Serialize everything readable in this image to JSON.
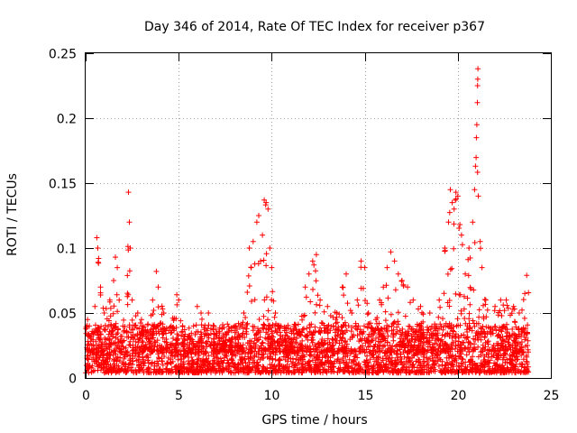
{
  "colors": {
    "marker": "#ff0000",
    "axis": "#000000",
    "grid": "#a0a0a0",
    "background": "#ffffff"
  },
  "chart_data": {
    "type": "scatter",
    "title": "Day 346 of 2014, Rate Of TEC Index for receiver p367",
    "xlabel": "GPS time / hours",
    "ylabel": "ROTI / TECUs",
    "xlim": [
      0,
      25
    ],
    "ylim": [
      0,
      0.25
    ],
    "x_ticks": [
      0,
      5,
      10,
      15,
      20,
      25
    ],
    "x_tick_labels": [
      "0",
      "5",
      "10",
      "15",
      "20",
      "25"
    ],
    "y_ticks": [
      0,
      0.05,
      0.1,
      0.15,
      0.2,
      0.25
    ],
    "y_tick_labels": [
      "0",
      "0.05",
      "0.1",
      "0.15",
      "0.2",
      "0.25"
    ],
    "grid": true,
    "marker": "+",
    "data_extent_hours": [
      0,
      23.8
    ],
    "series": [
      {
        "name": "ROTI",
        "description_points": "representative samples read from the figure",
        "points": [
          [
            0.1,
            0.045
          ],
          [
            0.2,
            0.04
          ],
          [
            0.3,
            0.03
          ],
          [
            0.5,
            0.055
          ],
          [
            0.6,
            0.108
          ],
          [
            0.65,
            0.1
          ],
          [
            0.7,
            0.092
          ],
          [
            0.8,
            0.07
          ],
          [
            1.0,
            0.05
          ],
          [
            1.3,
            0.06
          ],
          [
            1.5,
            0.075
          ],
          [
            1.6,
            0.093
          ],
          [
            1.7,
            0.085
          ],
          [
            1.8,
            0.06
          ],
          [
            2.0,
            0.04
          ],
          [
            2.3,
            0.143
          ],
          [
            2.35,
            0.12
          ],
          [
            2.4,
            0.1
          ],
          [
            2.5,
            0.06
          ],
          [
            2.8,
            0.05
          ],
          [
            3.0,
            0.045
          ],
          [
            3.3,
            0.035
          ],
          [
            3.6,
            0.06
          ],
          [
            3.8,
            0.082
          ],
          [
            3.9,
            0.07
          ],
          [
            4.2,
            0.05
          ],
          [
            4.6,
            0.04
          ],
          [
            4.9,
            0.064
          ],
          [
            5.0,
            0.06
          ],
          [
            5.3,
            0.03
          ],
          [
            5.8,
            0.04
          ],
          [
            6.0,
            0.055
          ],
          [
            6.2,
            0.05
          ],
          [
            6.6,
            0.05
          ],
          [
            6.9,
            0.04
          ],
          [
            7.2,
            0.03
          ],
          [
            7.6,
            0.035
          ],
          [
            8.0,
            0.04
          ],
          [
            8.5,
            0.05
          ],
          [
            8.8,
            0.1
          ],
          [
            8.9,
            0.085
          ],
          [
            9.0,
            0.105
          ],
          [
            9.2,
            0.12
          ],
          [
            9.3,
            0.125
          ],
          [
            9.4,
            0.09
          ],
          [
            9.5,
            0.11
          ],
          [
            9.6,
            0.137
          ],
          [
            9.7,
            0.135
          ],
          [
            9.8,
            0.13
          ],
          [
            9.9,
            0.1
          ],
          [
            10.0,
            0.085
          ],
          [
            10.2,
            0.05
          ],
          [
            10.5,
            0.04
          ],
          [
            10.8,
            0.035
          ],
          [
            11.0,
            0.03
          ],
          [
            11.5,
            0.035
          ],
          [
            11.8,
            0.07
          ],
          [
            12.0,
            0.08
          ],
          [
            12.2,
            0.09
          ],
          [
            12.4,
            0.095
          ],
          [
            12.6,
            0.06
          ],
          [
            13.0,
            0.055
          ],
          [
            13.5,
            0.05
          ],
          [
            13.8,
            0.07
          ],
          [
            14.0,
            0.08
          ],
          [
            14.3,
            0.05
          ],
          [
            14.6,
            0.06
          ],
          [
            14.8,
            0.09
          ],
          [
            15.0,
            0.085
          ],
          [
            15.2,
            0.05
          ],
          [
            15.6,
            0.045
          ],
          [
            15.8,
            0.06
          ],
          [
            16.0,
            0.07
          ],
          [
            16.2,
            0.085
          ],
          [
            16.4,
            0.097
          ],
          [
            16.6,
            0.09
          ],
          [
            16.8,
            0.08
          ],
          [
            17.0,
            0.075
          ],
          [
            17.3,
            0.07
          ],
          [
            17.6,
            0.06
          ],
          [
            18.0,
            0.055
          ],
          [
            18.5,
            0.05
          ],
          [
            19.0,
            0.06
          ],
          [
            19.3,
            0.1
          ],
          [
            19.5,
            0.12
          ],
          [
            19.6,
            0.145
          ],
          [
            19.7,
            0.135
          ],
          [
            19.8,
            0.13
          ],
          [
            19.9,
            0.143
          ],
          [
            20.0,
            0.14
          ],
          [
            20.2,
            0.11
          ],
          [
            20.4,
            0.08
          ],
          [
            20.6,
            0.1
          ],
          [
            20.8,
            0.12
          ],
          [
            20.9,
            0.145
          ],
          [
            20.95,
            0.163
          ],
          [
            21.0,
            0.185
          ],
          [
            21.02,
            0.195
          ],
          [
            21.05,
            0.212
          ],
          [
            21.06,
            0.225
          ],
          [
            21.07,
            0.23
          ],
          [
            21.08,
            0.238
          ],
          [
            21.1,
            0.14
          ],
          [
            21.2,
            0.105
          ],
          [
            21.3,
            0.085
          ],
          [
            21.5,
            0.06
          ],
          [
            22.0,
            0.055
          ],
          [
            22.3,
            0.06
          ],
          [
            22.6,
            0.06
          ],
          [
            23.0,
            0.055
          ],
          [
            23.3,
            0.05
          ],
          [
            23.6,
            0.065
          ],
          [
            23.7,
            0.079
          ]
        ]
      }
    ]
  }
}
